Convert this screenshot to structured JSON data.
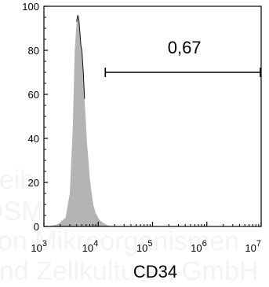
{
  "chart_data": {
    "type": "area",
    "title": "",
    "xlabel": "CD34",
    "ylabel": "",
    "x_scale": "log",
    "xlim": [
      1000,
      10000000
    ],
    "ylim": [
      0,
      100
    ],
    "y_ticks": [
      "0",
      "20",
      "40",
      "60",
      "80",
      "100"
    ],
    "x_ticks": [
      {
        "base": "10",
        "exp": "3"
      },
      {
        "base": "10",
        "exp": "4"
      },
      {
        "base": "10",
        "exp": "5"
      },
      {
        "base": "10",
        "exp": "6"
      },
      {
        "base": "10",
        "exp": "7"
      }
    ],
    "grid": false,
    "series": [
      {
        "fill_color": "#b4b4b4",
        "x": [
          1200,
          1800,
          2500,
          3000,
          3400,
          3700,
          4000,
          4200,
          4400,
          4600,
          4800,
          5000,
          5300,
          5600,
          5900,
          6200,
          6600,
          7000,
          7500,
          8100,
          9000,
          10500,
          12500,
          15000,
          18000
        ],
        "y": [
          0,
          1,
          4,
          15,
          45,
          80,
          93,
          96,
          94,
          88,
          82,
          80,
          70,
          58,
          48,
          38,
          30,
          22,
          16,
          10,
          6,
          3,
          1.5,
          0.5,
          0
        ]
      }
    ],
    "gate": {
      "label": "0,67",
      "x_start": 13500,
      "x_end": 10000000,
      "y": 70
    }
  },
  "watermark": [
    "Leib",
    "DSM",
    "von Mikroorganismen",
    "und Zellkulturen GmbH"
  ]
}
